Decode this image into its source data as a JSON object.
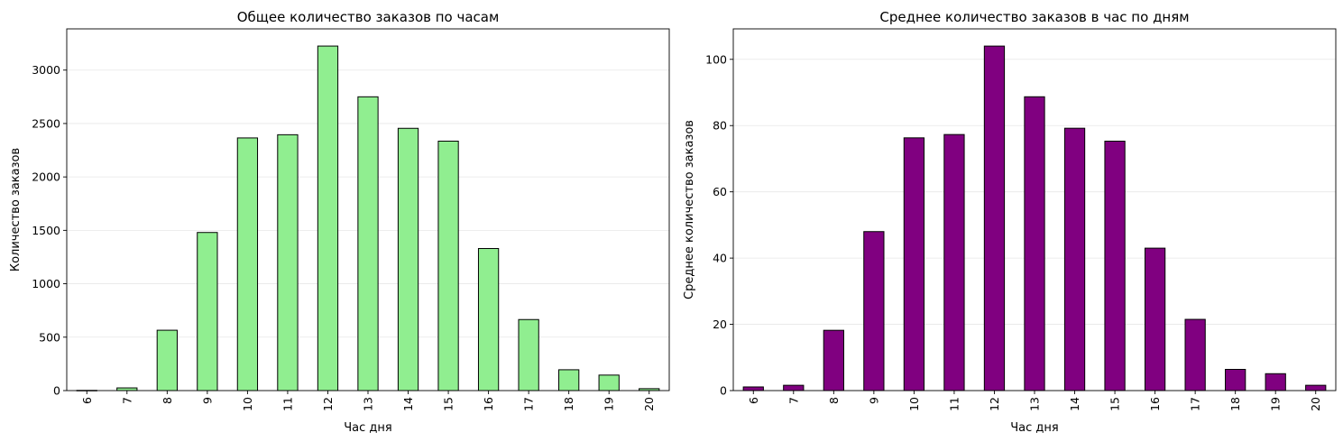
{
  "chart_data": [
    {
      "type": "bar",
      "title": "Общее количество заказов по часам",
      "xlabel": "Час дня",
      "ylabel": "Количество заказов",
      "categories": [
        "6",
        "7",
        "8",
        "9",
        "10",
        "11",
        "12",
        "13",
        "14",
        "15",
        "16",
        "17",
        "18",
        "19",
        "20"
      ],
      "values": [
        2,
        25,
        565,
        1480,
        2365,
        2395,
        3225,
        2750,
        2455,
        2335,
        1330,
        665,
        195,
        145,
        18
      ],
      "yticks": [
        0,
        500,
        1000,
        1500,
        2000,
        2500,
        3000
      ],
      "ylim": [
        0,
        3386
      ],
      "grid": "y",
      "bar_color": "#90ee90",
      "edge_color": "#000000"
    },
    {
      "type": "bar",
      "title": "Среднее количество заказов в час по дням",
      "xlabel": "Час дня",
      "ylabel": "Среднее количество заказов",
      "categories": [
        "6",
        "7",
        "8",
        "9",
        "10",
        "11",
        "12",
        "13",
        "14",
        "15",
        "16",
        "17",
        "18",
        "19",
        "20"
      ],
      "values": [
        1.1,
        1.6,
        18.2,
        48.0,
        76.3,
        77.3,
        104.0,
        88.7,
        79.2,
        75.3,
        43.0,
        21.5,
        6.4,
        5.1,
        1.6
      ],
      "yticks": [
        0,
        20,
        40,
        60,
        80,
        100
      ],
      "ylim": [
        0,
        109.2
      ],
      "grid": "y",
      "bar_color": "#800080",
      "edge_color": "#000000"
    }
  ]
}
